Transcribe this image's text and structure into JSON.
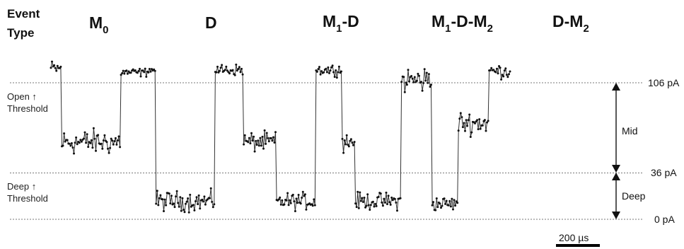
{
  "header": {
    "line1": "Event",
    "line2": "Type"
  },
  "events": [
    {
      "main": "M",
      "sub": "0",
      "tail": "",
      "sub2": ""
    },
    {
      "main": "D",
      "sub": "",
      "tail": "",
      "sub2": ""
    },
    {
      "main": "M",
      "sub": "1",
      "tail": "-D",
      "sub2": ""
    },
    {
      "main": "M",
      "sub": "1",
      "tail": "-D-M",
      "sub2": "2"
    },
    {
      "main": "D-M",
      "sub": "2",
      "tail": "",
      "sub2": ""
    }
  ],
  "side_labels": {
    "open_line1": "Open ↑",
    "open_line2": "Threshold",
    "deep_line1": "Deep ↑",
    "deep_line2": "Threshold"
  },
  "brackets": {
    "mid": "Mid",
    "deep": "Deep"
  },
  "scale_bar": {
    "label": "200 µs",
    "duration_us": 200
  },
  "chart_data": {
    "type": "line",
    "y_unit": "pA",
    "ylim": [
      -12,
      127
    ],
    "thresholds": [
      {
        "label": "106 pA",
        "value": 106
      },
      {
        "label": "36 pA",
        "value": 36
      },
      {
        "label": "0 pA",
        "value": 0
      }
    ],
    "total_duration_us": 2550,
    "sample_step_us": 5,
    "segments": [
      {
        "start_us": 0,
        "end_us": 50,
        "level": 117,
        "noise": 6
      },
      {
        "start_us": 50,
        "end_us": 320,
        "level": 60,
        "noise": 9
      },
      {
        "start_us": 320,
        "end_us": 440,
        "level": 114,
        "noise": 3
      },
      {
        "start_us": 440,
        "end_us": 480,
        "level": 116,
        "noise": 3
      },
      {
        "start_us": 480,
        "end_us": 750,
        "level": 14,
        "noise": 7
      },
      {
        "start_us": 750,
        "end_us": 880,
        "level": 116,
        "noise": 4
      },
      {
        "start_us": 880,
        "end_us": 1030,
        "level": 60,
        "noise": 7
      },
      {
        "start_us": 1030,
        "end_us": 1210,
        "level": 14,
        "noise": 6
      },
      {
        "start_us": 1210,
        "end_us": 1330,
        "level": 116,
        "noise": 4
      },
      {
        "start_us": 1330,
        "end_us": 1390,
        "level": 60,
        "noise": 7
      },
      {
        "start_us": 1390,
        "end_us": 1600,
        "level": 14,
        "noise": 6
      },
      {
        "start_us": 1600,
        "end_us": 1740,
        "level": 108,
        "noise": 10
      },
      {
        "start_us": 1740,
        "end_us": 1860,
        "level": 12,
        "noise": 5
      },
      {
        "start_us": 1860,
        "end_us": 2000,
        "level": 75,
        "noise": 8
      },
      {
        "start_us": 2000,
        "end_us": 2100,
        "level": 115,
        "noise": 5
      }
    ]
  }
}
